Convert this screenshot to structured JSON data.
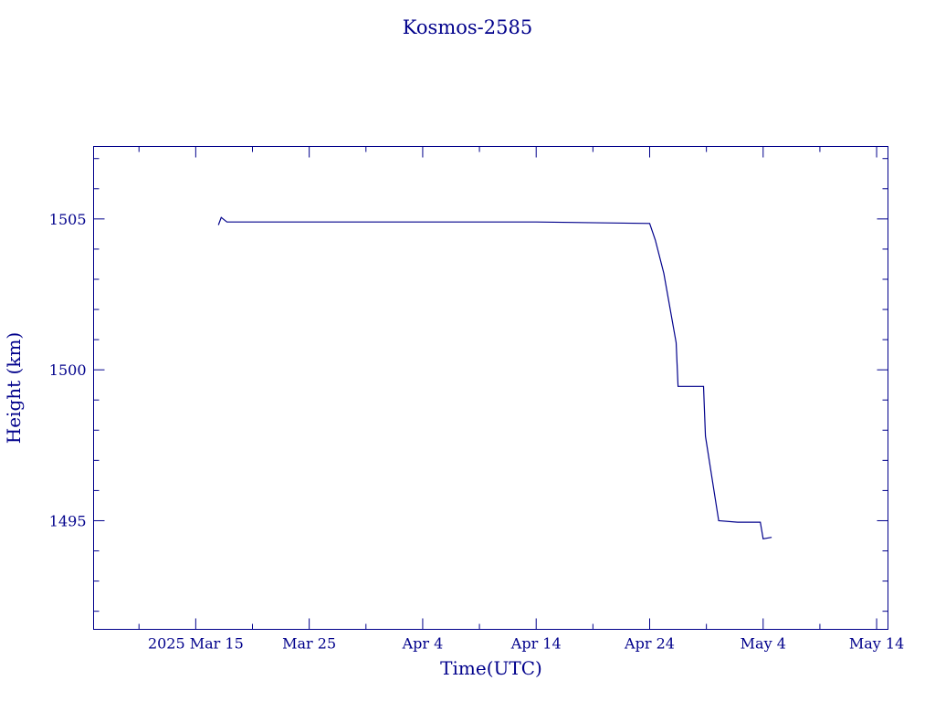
{
  "chart_data": {
    "type": "line",
    "title": "Kosmos-2585",
    "xlabel": "Time(UTC)",
    "ylabel": "Height (km)",
    "x_is_date": true,
    "xlim": [
      "2025-03-06T00:00",
      "2025-05-15T00:00"
    ],
    "ylim": [
      1491.4,
      1507.4
    ],
    "x_ticks": [
      {
        "value": "2025-03-15T00:00",
        "label": "2025 Mar 15"
      },
      {
        "value": "2025-03-25T00:00",
        "label": "Mar 25"
      },
      {
        "value": "2025-04-04T00:00",
        "label": "Apr  4"
      },
      {
        "value": "2025-04-14T00:00",
        "label": "Apr 14"
      },
      {
        "value": "2025-04-24T00:00",
        "label": "Apr 24"
      },
      {
        "value": "2025-05-04T00:00",
        "label": "May  4"
      },
      {
        "value": "2025-05-14T00:00",
        "label": "May 14"
      }
    ],
    "x_minor_ticks": [
      "2025-03-10T00:00",
      "2025-03-20T00:00",
      "2025-03-30T00:00",
      "2025-04-09T00:00",
      "2025-04-19T00:00",
      "2025-04-29T00:00",
      "2025-05-09T00:00"
    ],
    "y_ticks": [
      {
        "value": 1495,
        "label": "1495"
      },
      {
        "value": 1500,
        "label": "1500"
      },
      {
        "value": 1505,
        "label": "1505"
      }
    ],
    "y_minor_ticks": [
      1492,
      1493,
      1494,
      1496,
      1497,
      1498,
      1499,
      1501,
      1502,
      1503,
      1504,
      1506,
      1507
    ],
    "grid": false,
    "legend": "none",
    "color": "#00008b",
    "series": [
      {
        "points": [
          [
            "2025-03-17T00:00",
            1504.8
          ],
          [
            "2025-03-17T06:00",
            1505.05
          ],
          [
            "2025-03-17T18:00",
            1504.9
          ],
          [
            "2025-04-14T00:00",
            1504.9
          ],
          [
            "2025-04-24T00:00",
            1504.85
          ],
          [
            "2025-04-24T12:00",
            1504.3
          ],
          [
            "2025-04-25T06:00",
            1503.2
          ],
          [
            "2025-04-26T08:00",
            1500.9
          ],
          [
            "2025-04-26T12:00",
            1499.45
          ],
          [
            "2025-04-28T18:00",
            1499.45
          ],
          [
            "2025-04-28T22:00",
            1497.8
          ],
          [
            "2025-04-30T02:00",
            1495.0
          ],
          [
            "2025-05-01T18:00",
            1494.95
          ],
          [
            "2025-05-03T18:00",
            1494.95
          ],
          [
            "2025-05-04T00:00",
            1494.4
          ],
          [
            "2025-05-04T18:00",
            1494.45
          ]
        ]
      }
    ]
  }
}
